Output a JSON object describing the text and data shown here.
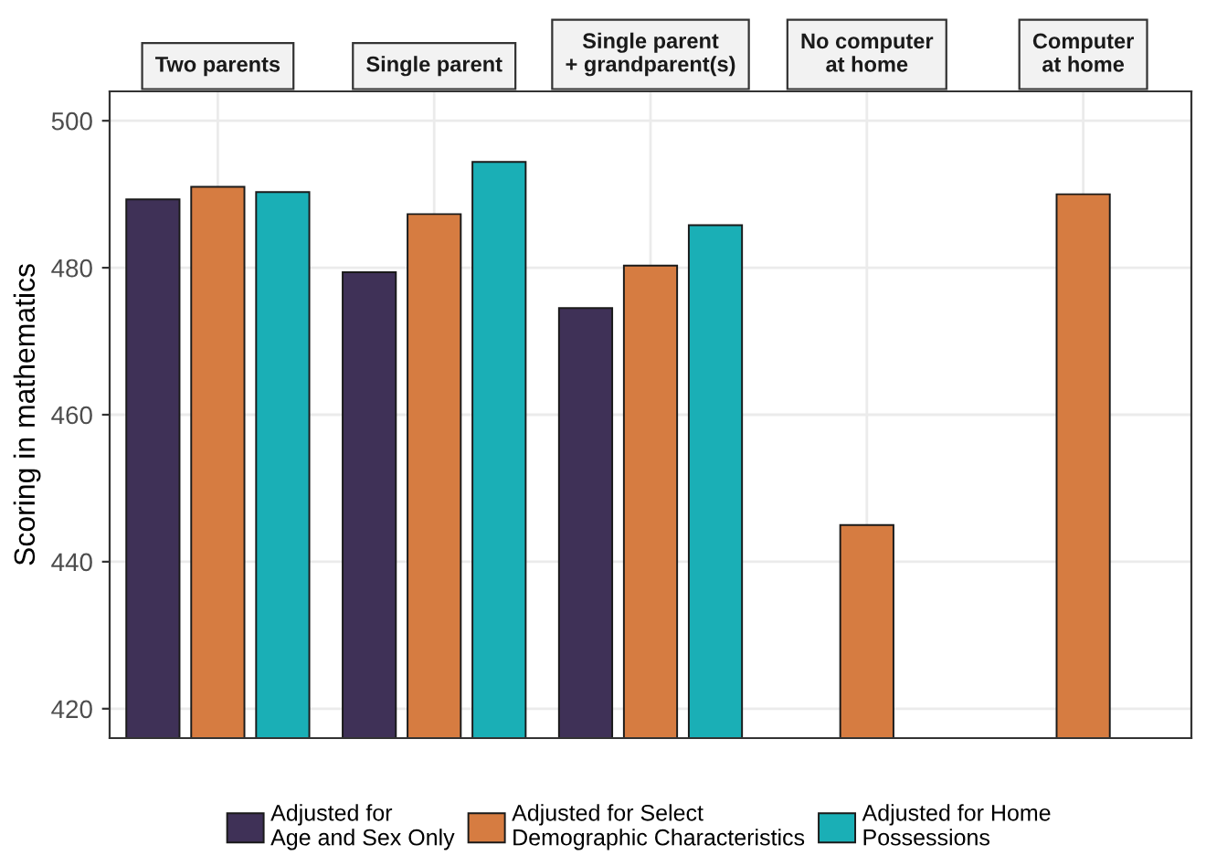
{
  "chart_data": {
    "type": "bar",
    "ylabel": "Scoring in mathematics",
    "categories": [
      "Two parents",
      "Single parent",
      "Single parent\n+ grandparent(s)",
      "No computer\nat home",
      "Computer\nat home"
    ],
    "ylim": [
      416,
      504
    ],
    "yticks": [
      420,
      440,
      460,
      480,
      500
    ],
    "grid": true,
    "legend": "bottom",
    "series": [
      {
        "name": "Adjusted for\nAge and Sex Only",
        "color": "#3f3157",
        "values": [
          489.3,
          479.4,
          474.5,
          null,
          null
        ]
      },
      {
        "name": "Adjusted for Select\nDemographic Characteristics",
        "color": "#d67c41",
        "values": [
          491.0,
          487.3,
          480.3,
          445.0,
          490.0
        ]
      },
      {
        "name": "Adjusted for Home\nPossessions",
        "color": "#1aafb6",
        "values": [
          490.3,
          494.4,
          485.8,
          null,
          null
        ]
      }
    ]
  }
}
